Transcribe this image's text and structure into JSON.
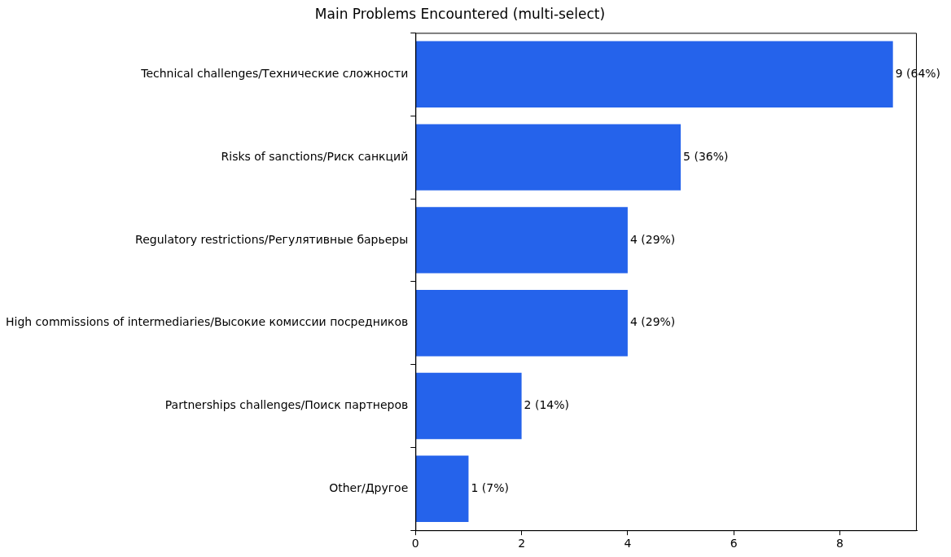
{
  "chart_data": {
    "type": "bar",
    "orientation": "horizontal",
    "title": "Main Problems Encountered (multi-select)",
    "categories": [
      "Technical challenges/Технические сложности",
      "Risks of sanctions/Риск санкций",
      "Regulatory restrictions/Регулятивные барьеры",
      "High commissions of intermediaries/Высокие комиссии посредников",
      "Partnerships challenges/Поиск партнеров",
      "Other/Другое"
    ],
    "values": [
      9,
      5,
      4,
      4,
      2,
      1
    ],
    "value_labels": [
      "9 (64%)",
      "5 (36%)",
      "4 (29%)",
      "4 (29%)",
      "2 (14%)",
      "1 (7%)"
    ],
    "color": "#2563eb",
    "xlim": [
      0,
      9.45
    ],
    "xticks": [
      0,
      2,
      4,
      6,
      8
    ],
    "grid": false,
    "legend": false
  }
}
